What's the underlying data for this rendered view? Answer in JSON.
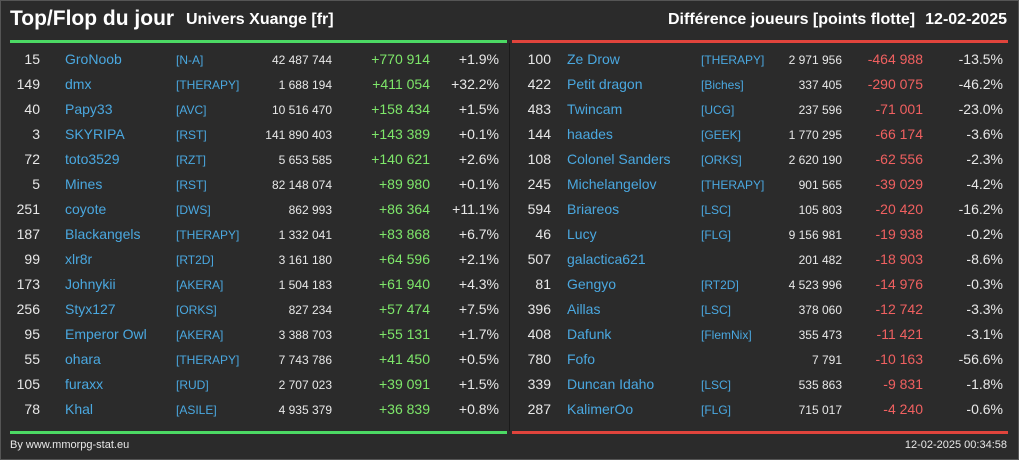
{
  "header": {
    "title": "Top/Flop du jour",
    "universe": "Univers Xuange [fr]",
    "diff_label": "Différence joueurs [points flotte]",
    "date": "12-02-2025"
  },
  "colors": {
    "gain": "#7ee76a",
    "loss": "#f06060",
    "link": "#4aa8e0",
    "top_bar": "#4cd964",
    "flop_bar": "#e0443c"
  },
  "top": [
    {
      "rank": "15",
      "name": "GroNoob",
      "guild": "[N-A]",
      "score": "42 487 744",
      "diff": "+770 914",
      "pct": "+1.9%"
    },
    {
      "rank": "149",
      "name": "dmx",
      "guild": "[THERAPY]",
      "score": "1 688 194",
      "diff": "+411 054",
      "pct": "+32.2%"
    },
    {
      "rank": "40",
      "name": "Papy33",
      "guild": "[AVC]",
      "score": "10 516 470",
      "diff": "+158 434",
      "pct": "+1.5%"
    },
    {
      "rank": "3",
      "name": "SKYRIPA",
      "guild": "[RST]",
      "score": "141 890 403",
      "diff": "+143 389",
      "pct": "+0.1%"
    },
    {
      "rank": "72",
      "name": "toto3529",
      "guild": "[RZT]",
      "score": "5 653 585",
      "diff": "+140 621",
      "pct": "+2.6%"
    },
    {
      "rank": "5",
      "name": "Mines",
      "guild": "[RST]",
      "score": "82 148 074",
      "diff": "+89 980",
      "pct": "+0.1%"
    },
    {
      "rank": "251",
      "name": "coyote",
      "guild": "[DWS]",
      "score": "862 993",
      "diff": "+86 364",
      "pct": "+11.1%"
    },
    {
      "rank": "187",
      "name": "Blackangels",
      "guild": "[THERAPY]",
      "score": "1 332 041",
      "diff": "+83 868",
      "pct": "+6.7%"
    },
    {
      "rank": "99",
      "name": "xlr8r",
      "guild": "[RT2D]",
      "score": "3 161 180",
      "diff": "+64 596",
      "pct": "+2.1%"
    },
    {
      "rank": "173",
      "name": "Johnykii",
      "guild": "[AKERA]",
      "score": "1 504 183",
      "diff": "+61 940",
      "pct": "+4.3%"
    },
    {
      "rank": "256",
      "name": "Styx127",
      "guild": "[ORKS]",
      "score": "827 234",
      "diff": "+57 474",
      "pct": "+7.5%"
    },
    {
      "rank": "95",
      "name": "Emperor Owl",
      "guild": "[AKERA]",
      "score": "3 388 703",
      "diff": "+55 131",
      "pct": "+1.7%"
    },
    {
      "rank": "55",
      "name": "ohara",
      "guild": "[THERAPY]",
      "score": "7 743 786",
      "diff": "+41 450",
      "pct": "+0.5%"
    },
    {
      "rank": "105",
      "name": "furaxx",
      "guild": "[RUD]",
      "score": "2 707 023",
      "diff": "+39 091",
      "pct": "+1.5%"
    },
    {
      "rank": "78",
      "name": "Khal",
      "guild": "[ASILE]",
      "score": "4 935 379",
      "diff": "+36 839",
      "pct": "+0.8%"
    }
  ],
  "flop": [
    {
      "rank": "100",
      "name": "Ze Drow",
      "guild": "[THERAPY]",
      "score": "2 971 956",
      "diff": "-464 988",
      "pct": "-13.5%"
    },
    {
      "rank": "422",
      "name": "Petit dragon",
      "guild": "[Biches]",
      "score": "337 405",
      "diff": "-290 075",
      "pct": "-46.2%"
    },
    {
      "rank": "483",
      "name": "Twincam",
      "guild": "[UCG]",
      "score": "237 596",
      "diff": "-71 001",
      "pct": "-23.0%"
    },
    {
      "rank": "144",
      "name": "haades",
      "guild": "[GEEK]",
      "score": "1 770 295",
      "diff": "-66 174",
      "pct": "-3.6%"
    },
    {
      "rank": "108",
      "name": "Colonel Sanders",
      "guild": "[ORKS]",
      "score": "2 620 190",
      "diff": "-62 556",
      "pct": "-2.3%"
    },
    {
      "rank": "245",
      "name": "Michelangelov",
      "guild": "[THERAPY]",
      "score": "901 565",
      "diff": "-39 029",
      "pct": "-4.2%"
    },
    {
      "rank": "594",
      "name": "Briareos",
      "guild": "[LSC]",
      "score": "105 803",
      "diff": "-20 420",
      "pct": "-16.2%"
    },
    {
      "rank": "46",
      "name": "Lucy",
      "guild": "[FLG]",
      "score": "9 156 981",
      "diff": "-19 938",
      "pct": "-0.2%"
    },
    {
      "rank": "507",
      "name": "galactica621",
      "guild": "",
      "score": "201 482",
      "diff": "-18 903",
      "pct": "-8.6%"
    },
    {
      "rank": "81",
      "name": "Gengyo",
      "guild": "[RT2D]",
      "score": "4 523 996",
      "diff": "-14 976",
      "pct": "-0.3%"
    },
    {
      "rank": "396",
      "name": "Aillas",
      "guild": "[LSC]",
      "score": "378 060",
      "diff": "-12 742",
      "pct": "-3.3%"
    },
    {
      "rank": "408",
      "name": "Dafunk",
      "guild": "[FlemNix]",
      "score": "355 473",
      "diff": "-11 421",
      "pct": "-3.1%"
    },
    {
      "rank": "780",
      "name": "Fofo",
      "guild": "",
      "score": "7 791",
      "diff": "-10 163",
      "pct": "-56.6%"
    },
    {
      "rank": "339",
      "name": "Duncan Idaho",
      "guild": "[LSC]",
      "score": "535 863",
      "diff": "-9 831",
      "pct": "-1.8%"
    },
    {
      "rank": "287",
      "name": "KalimerOo",
      "guild": "[FLG]",
      "score": "715 017",
      "diff": "-4 240",
      "pct": "-0.6%"
    }
  ],
  "footer": {
    "source": "By www.mmorpg-stat.eu",
    "timestamp": "12-02-2025 00:34:58"
  }
}
